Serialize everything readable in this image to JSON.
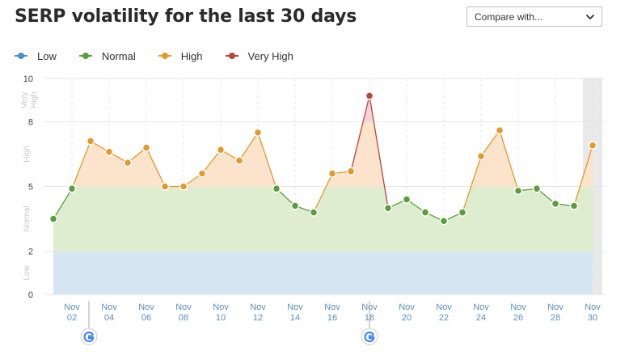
{
  "header": {
    "title": "SERP volatility for the last 30 days",
    "compare_label": "Compare with..."
  },
  "legend": [
    {
      "label": "Low",
      "color": "#4a8fc6"
    },
    {
      "label": "Normal",
      "color": "#5a9e3a"
    },
    {
      "label": "High",
      "color": "#e39a2c"
    },
    {
      "label": "Very High",
      "color": "#b8453c"
    }
  ],
  "chart_data": {
    "type": "area",
    "ylim": [
      0,
      10
    ],
    "yticks": [
      0,
      2,
      5,
      8,
      10
    ],
    "bands": [
      {
        "label": "Low",
        "from": 0,
        "to": 2,
        "color": "#d6e6f2"
      },
      {
        "label": "Normal",
        "from": 2,
        "to": 5,
        "color": "#e0ecd9"
      },
      {
        "label": "High",
        "from": 5,
        "to": 8,
        "color": "#f8e5d3"
      },
      {
        "label": "Very High",
        "from": 8,
        "to": 10,
        "color": "#f5dddd"
      }
    ],
    "x_tick_labels": [
      {
        "day": 2,
        "label": "Nov\n02"
      },
      {
        "day": 4,
        "label": "Nov\n04"
      },
      {
        "day": 6,
        "label": "Nov\n06"
      },
      {
        "day": 8,
        "label": "Nov\n08"
      },
      {
        "day": 10,
        "label": "Nov\n10"
      },
      {
        "day": 12,
        "label": "Nov\n12"
      },
      {
        "day": 14,
        "label": "Nov\n14"
      },
      {
        "day": 16,
        "label": "Nov\n16"
      },
      {
        "day": 18,
        "label": "Nov\n18"
      },
      {
        "day": 20,
        "label": "Nov\n20"
      },
      {
        "day": 22,
        "label": "Nov\n22"
      },
      {
        "day": 24,
        "label": "Nov\n24"
      },
      {
        "day": 26,
        "label": "Nov\n26"
      },
      {
        "day": 28,
        "label": "Nov\n28"
      },
      {
        "day": 30,
        "label": "Nov\n30"
      }
    ],
    "series": [
      {
        "values": [
          {
            "day": 1,
            "v": 3.5
          },
          {
            "day": 2,
            "v": 4.9
          },
          {
            "day": 3,
            "v": 7.1
          },
          {
            "day": 4,
            "v": 6.6
          },
          {
            "day": 5,
            "v": 6.1
          },
          {
            "day": 6,
            "v": 6.8
          },
          {
            "day": 7,
            "v": 5.0
          },
          {
            "day": 8,
            "v": 5.0
          },
          {
            "day": 9,
            "v": 5.6
          },
          {
            "day": 10,
            "v": 6.7
          },
          {
            "day": 11,
            "v": 6.2
          },
          {
            "day": 12,
            "v": 7.5
          },
          {
            "day": 13,
            "v": 4.9
          },
          {
            "day": 14,
            "v": 4.1
          },
          {
            "day": 15,
            "v": 3.8
          },
          {
            "day": 16,
            "v": 5.6
          },
          {
            "day": 17,
            "v": 5.7
          },
          {
            "day": 18,
            "v": 9.2
          },
          {
            "day": 19,
            "v": 4.0
          },
          {
            "day": 20,
            "v": 4.4
          },
          {
            "day": 21,
            "v": 3.8
          },
          {
            "day": 22,
            "v": 3.4
          },
          {
            "day": 23,
            "v": 3.8
          },
          {
            "day": 24,
            "v": 6.4
          },
          {
            "day": 25,
            "v": 7.6
          },
          {
            "day": 26,
            "v": 4.8
          },
          {
            "day": 27,
            "v": 4.9
          },
          {
            "day": 28,
            "v": 4.2
          },
          {
            "day": 29,
            "v": 4.1
          },
          {
            "day": 30,
            "v": 6.9
          }
        ]
      }
    ],
    "google_update_days": [
      2,
      18
    ],
    "highlighted_day": 30
  }
}
